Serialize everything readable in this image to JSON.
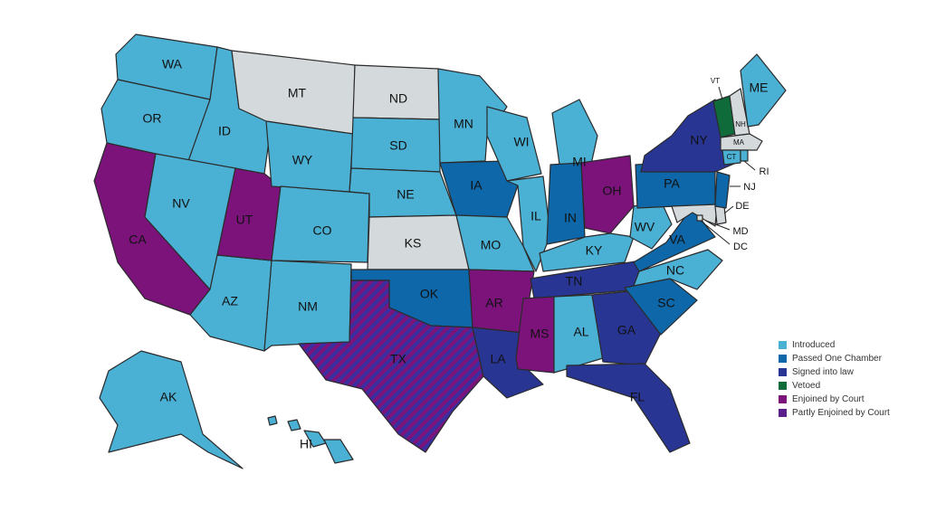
{
  "colors": {
    "introduced": "#4ab0d4",
    "passed_one_chamber": "#0e67a8",
    "signed": "#283593",
    "vetoed": "#0f6b3a",
    "enjoined": "#7b137a",
    "partly_enjoined": "#5a1f8a",
    "no_action": "#d4d9dc"
  },
  "legend": [
    {
      "label": "Introduced",
      "color": "#4ab0d4"
    },
    {
      "label": "Passed One Chamber",
      "color": "#0e67a8"
    },
    {
      "label": "Signed into law",
      "color": "#283593"
    },
    {
      "label": "Vetoed",
      "color": "#0f6b3a"
    },
    {
      "label": "Enjoined by Court",
      "color": "#7b137a"
    },
    {
      "label": "Partly Enjoined by Court",
      "color": "#5a1f8a"
    }
  ],
  "states": {
    "WA": {
      "label": "WA",
      "status": "Introduced"
    },
    "OR": {
      "label": "OR",
      "status": "Introduced"
    },
    "CA": {
      "label": "CA",
      "status": "Enjoined by Court"
    },
    "ID": {
      "label": "ID",
      "status": "Introduced"
    },
    "NV": {
      "label": "NV",
      "status": "Introduced"
    },
    "AZ": {
      "label": "AZ",
      "status": "Introduced"
    },
    "UT": {
      "label": "UT",
      "status": "Enjoined by Court"
    },
    "MT": {
      "label": "MT",
      "status": ""
    },
    "WY": {
      "label": "WY",
      "status": "Introduced"
    },
    "CO": {
      "label": "CO",
      "status": "Introduced"
    },
    "NM": {
      "label": "NM",
      "status": "Introduced"
    },
    "ND": {
      "label": "ND",
      "status": ""
    },
    "SD": {
      "label": "SD",
      "status": "Introduced"
    },
    "NE": {
      "label": "NE",
      "status": "Introduced"
    },
    "KS": {
      "label": "KS",
      "status": ""
    },
    "OK": {
      "label": "OK",
      "status": "Passed One Chamber"
    },
    "TX": {
      "label": "TX",
      "status": "Partly Enjoined by Court"
    },
    "MN": {
      "label": "MN",
      "status": "Introduced"
    },
    "IA": {
      "label": "IA",
      "status": "Passed One Chamber"
    },
    "MO": {
      "label": "MO",
      "status": "Introduced"
    },
    "AR": {
      "label": "AR",
      "status": "Enjoined by Court"
    },
    "LA": {
      "label": "LA",
      "status": "Signed into law"
    },
    "WI": {
      "label": "WI",
      "status": "Introduced"
    },
    "IL": {
      "label": "IL",
      "status": "Introduced"
    },
    "MI": {
      "label": "MI",
      "status": "Introduced"
    },
    "IN": {
      "label": "IN",
      "status": "Passed One Chamber"
    },
    "OH": {
      "label": "OH",
      "status": "Enjoined by Court"
    },
    "KY": {
      "label": "KY",
      "status": "Introduced"
    },
    "TN": {
      "label": "TN",
      "status": "Signed into law"
    },
    "MS": {
      "label": "MS",
      "status": "Enjoined by Court"
    },
    "AL": {
      "label": "AL",
      "status": "Introduced"
    },
    "GA": {
      "label": "GA",
      "status": "Signed into law"
    },
    "FL": {
      "label": "FL",
      "status": "Signed into law"
    },
    "SC": {
      "label": "SC",
      "status": "Passed One Chamber"
    },
    "NC": {
      "label": "NC",
      "status": "Introduced"
    },
    "VA": {
      "label": "VA",
      "status": "Passed One Chamber"
    },
    "WV": {
      "label": "WV",
      "status": "Introduced"
    },
    "PA": {
      "label": "PA",
      "status": "Passed One Chamber"
    },
    "NY": {
      "label": "NY",
      "status": "Signed into law"
    },
    "NJ": {
      "label": "NJ",
      "status": "Passed One Chamber"
    },
    "DE": {
      "label": "DE",
      "status": ""
    },
    "MD": {
      "label": "MD",
      "status": ""
    },
    "DC": {
      "label": "DC",
      "status": ""
    },
    "VT": {
      "label": "VT",
      "status": "Vetoed"
    },
    "NH": {
      "label": "NH",
      "status": ""
    },
    "ME": {
      "label": "ME",
      "status": "Introduced"
    },
    "MA": {
      "label": "MA",
      "status": ""
    },
    "RI": {
      "label": "RI",
      "status": "Introduced"
    },
    "CT": {
      "label": "CT",
      "status": "Introduced"
    },
    "AK": {
      "label": "AK",
      "status": "Introduced"
    },
    "HI": {
      "label": "HI",
      "status": "Introduced"
    }
  }
}
